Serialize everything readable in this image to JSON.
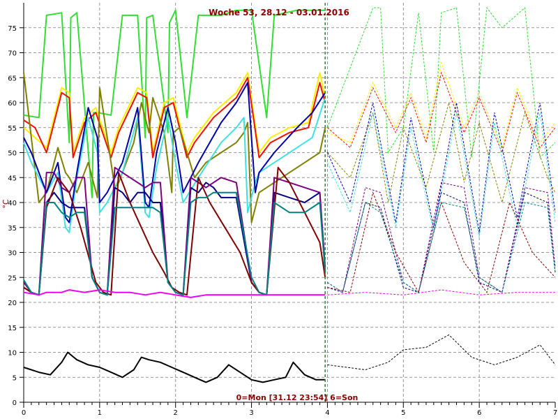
{
  "title": "Woche 53, 28.12 - 03.01.2016",
  "status": "0=Mon [31.12 23:54] 6=Son",
  "chart_data": {
    "type": "line",
    "title": "Woche 53, 28.12 - 03.01.2016",
    "ylabel": "°C",
    "xlim": [
      0,
      7
    ],
    "ylim": [
      0,
      80
    ],
    "x_ticks": [
      "0",
      "1",
      "2",
      "3",
      "4",
      "5",
      "6",
      "7"
    ],
    "y_ticks": [
      "0",
      "5",
      "10",
      "15",
      "20",
      "25",
      "30",
      "35",
      "40",
      "45",
      "50",
      "55",
      "60",
      "65",
      "70",
      "75"
    ],
    "grid": true,
    "divider_x": 3.97,
    "series": [
      {
        "color": "#33dd33",
        "x": [
          0,
          0.2,
          0.3,
          0.5,
          0.6,
          0.62,
          0.7,
          0.9,
          0.92,
          0.98,
          1.15,
          1.3,
          1.5,
          1.6,
          1.62,
          1.7,
          1.9,
          1.92,
          2.0,
          2.15,
          2.3,
          2.6,
          2.8,
          3.0,
          3.2,
          3.3,
          3.6,
          3.97
        ],
        "y": [
          57.5,
          57,
          77.5,
          78,
          52,
          77,
          78,
          41,
          58,
          58,
          57.5,
          77.5,
          77.5,
          53,
          77,
          77.5,
          54,
          76,
          78.5,
          57,
          77.5,
          77.5,
          78.5,
          78.5,
          57,
          77.5,
          78.5,
          78.5
        ],
        "proj_x": [
          4,
          4.5,
          4.6,
          4.7,
          4.8,
          5.0,
          5.2,
          5.4,
          5.5,
          5.7,
          5.9,
          6.1,
          6.3,
          6.6,
          6.8,
          7
        ],
        "proj_y": [
          55,
          75,
          79,
          79,
          50,
          55,
          78,
          50,
          78,
          79,
          49,
          79,
          75,
          79,
          49,
          52
        ]
      },
      {
        "color": "#ffee00",
        "x": [
          0,
          0.15,
          0.3,
          0.5,
          0.6,
          0.65,
          0.8,
          0.95,
          1.15,
          1.25,
          1.5,
          1.62,
          1.7,
          1.85,
          1.97,
          2.15,
          2.25,
          2.5,
          2.8,
          2.95,
          3.1,
          3.25,
          3.5,
          3.75,
          3.9,
          3.97
        ],
        "y": [
          55,
          53,
          51,
          63,
          62,
          50,
          57,
          59,
          50,
          55,
          63,
          62,
          50,
          60,
          61,
          50,
          53,
          58,
          62,
          66,
          50,
          53,
          55,
          56,
          66,
          61
        ],
        "proj_x": [
          4,
          4.3,
          4.6,
          4.9,
          5.1,
          5.3,
          5.5,
          5.8,
          6.0,
          6.3,
          6.5,
          6.8,
          7
        ],
        "proj_y": [
          54,
          52,
          64,
          55,
          62,
          53,
          68,
          55,
          62,
          51,
          63,
          52,
          56
        ]
      },
      {
        "color": "#ee1100",
        "x": [
          0,
          0.15,
          0.3,
          0.5,
          0.6,
          0.65,
          0.8,
          0.95,
          1.15,
          1.25,
          1.5,
          1.62,
          1.7,
          1.85,
          1.97,
          2.15,
          2.25,
          2.5,
          2.8,
          2.95,
          3.1,
          3.25,
          3.5,
          3.75,
          3.9,
          3.97
        ],
        "y": [
          56.5,
          55,
          50,
          62,
          61,
          49,
          56,
          58,
          49,
          54,
          62,
          61,
          49,
          59,
          60,
          49,
          52,
          57,
          61,
          65,
          49,
          52,
          54,
          55,
          64,
          60
        ],
        "proj_x": [
          4,
          4.3,
          4.6,
          4.9,
          5.1,
          5.3,
          5.5,
          5.8,
          6.0,
          6.3,
          6.5,
          6.8,
          7
        ],
        "proj_y": [
          55,
          51,
          63,
          54,
          61,
          52,
          66,
          54,
          61,
          50,
          62,
          51,
          55
        ]
      },
      {
        "color": "#808000",
        "x": [
          0,
          0.2,
          0.3,
          0.45,
          0.55,
          0.6,
          0.7,
          0.85,
          0.97,
          1.0,
          1.2,
          1.25,
          1.45,
          1.55,
          1.65,
          1.7,
          1.85,
          1.95,
          1.97,
          2.05,
          2.25,
          2.4,
          2.6,
          2.8,
          2.9,
          2.95,
          3.0,
          3.1,
          3.3,
          3.5,
          3.7,
          3.9,
          3.97
        ],
        "y": [
          66,
          40,
          42,
          51,
          46,
          45,
          42,
          48,
          41,
          63,
          43,
          44,
          52,
          60,
          54,
          61,
          54,
          42,
          54,
          55,
          45,
          48,
          50,
          52,
          54,
          56,
          36,
          42,
          44,
          46,
          48,
          50,
          55
        ],
        "proj_x": [
          4,
          4.3,
          4.6,
          4.8,
          5.0,
          5.3,
          5.6,
          5.8,
          6.0,
          6.3,
          6.6,
          6.9,
          7
        ],
        "proj_y": [
          50,
          45,
          58,
          40,
          55,
          43,
          60,
          44,
          56,
          40,
          58,
          45,
          42
        ]
      },
      {
        "color": "#40e0e0",
        "x": [
          0,
          0.1,
          0.2,
          0.3,
          0.45,
          0.55,
          0.6,
          0.7,
          0.85,
          0.97,
          1.0,
          1.1,
          1.2,
          1.3,
          1.5,
          1.6,
          1.65,
          1.75,
          1.9,
          2.0,
          2.1,
          2.3,
          2.6,
          2.8,
          2.9,
          2.95,
          3.05,
          3.1,
          3.3,
          3.6,
          3.8,
          3.97
        ],
        "y": [
          52,
          48,
          45,
          42,
          46,
          35,
          34,
          45,
          57,
          50,
          38,
          40,
          43,
          46,
          57,
          38,
          37,
          47,
          57,
          48,
          40,
          45,
          52,
          55,
          57,
          38,
          44,
          46,
          48,
          51,
          53,
          61
        ],
        "proj_x": [
          4,
          4.3,
          4.6,
          4.9,
          5.1,
          5.4,
          5.7,
          6.0,
          6.2,
          6.5,
          6.8,
          7
        ],
        "proj_y": [
          48,
          38,
          58,
          35,
          55,
          34,
          58,
          33,
          56,
          35,
          58,
          36
        ]
      },
      {
        "color": "#0000aa",
        "x": [
          0,
          0.1,
          0.25,
          0.3,
          0.45,
          0.55,
          0.6,
          0.7,
          0.85,
          0.97,
          1.0,
          1.1,
          1.2,
          1.3,
          1.5,
          1.6,
          1.65,
          1.75,
          1.9,
          2.0,
          2.1,
          2.3,
          2.6,
          2.8,
          2.95,
          3.05,
          3.1,
          3.3,
          3.6,
          3.8,
          3.97
        ],
        "y": [
          53,
          50,
          44,
          42,
          48,
          37,
          36,
          46,
          59,
          53,
          40,
          42,
          45,
          48,
          59,
          40,
          39,
          50,
          59,
          52,
          42,
          48,
          56,
          60,
          64,
          42,
          46,
          50,
          55,
          58,
          62
        ],
        "proj_x": [
          4,
          4.3,
          4.6,
          4.9,
          5.1,
          5.4,
          5.7,
          6.0,
          6.2,
          6.5,
          6.8,
          7
        ],
        "proj_y": [
          50,
          40,
          60,
          36,
          57,
          35,
          60,
          34,
          58,
          37,
          60,
          38
        ]
      },
      {
        "color": "#000080",
        "x": [
          0,
          0.1,
          0.2,
          0.3,
          0.4,
          0.5,
          0.6,
          0.7,
          0.8,
          0.9,
          1.0,
          1.1,
          1.2,
          1.3,
          1.4,
          1.5,
          1.6,
          1.7,
          1.8,
          1.9,
          2.0,
          2.1,
          2.2,
          2.3,
          2.4,
          2.5,
          2.6,
          2.8,
          3.0,
          3.1,
          3.2,
          3.3,
          3.5,
          3.7,
          3.9,
          3.97
        ],
        "y": [
          23,
          22,
          21.5,
          40,
          42,
          40,
          39,
          39,
          39,
          25,
          22,
          21.5,
          43,
          42,
          40,
          42,
          42,
          40,
          40,
          24,
          22,
          21.5,
          43,
          42,
          44,
          43,
          41,
          41,
          24,
          22,
          21.5,
          42,
          41,
          40,
          42,
          26
        ],
        "proj_x": [
          4,
          4.2,
          4.5,
          4.7,
          5.0,
          5.2,
          5.5,
          5.8,
          6.0,
          6.3,
          6.6,
          6.9,
          7
        ],
        "proj_y": [
          23,
          22,
          40,
          39,
          23,
          22,
          42,
          40,
          24,
          22,
          42,
          40,
          26
        ]
      },
      {
        "color": "#7a0080",
        "x": [
          0,
          0.1,
          0.2,
          0.3,
          0.4,
          0.5,
          0.6,
          0.7,
          0.8,
          0.9,
          1.0,
          1.1,
          1.2,
          1.3,
          1.4,
          1.5,
          1.6,
          1.7,
          1.8,
          1.9,
          2.0,
          2.1,
          2.2,
          2.3,
          2.4,
          2.5,
          2.6,
          2.8,
          3.0,
          3.1,
          3.2,
          3.3,
          3.5,
          3.7,
          3.9,
          3.97
        ],
        "y": [
          24,
          22,
          21.5,
          46,
          46,
          43,
          42,
          45,
          45,
          25,
          22,
          21.5,
          47,
          46,
          45,
          44,
          43,
          44,
          44,
          24,
          22,
          21.5,
          45,
          44,
          43,
          44,
          45,
          44,
          24,
          22,
          21.5,
          45,
          44,
          43,
          42,
          27
        ],
        "proj_x": [
          4,
          4.2,
          4.5,
          4.7,
          5.0,
          5.2,
          5.5,
          5.8,
          6.0,
          6.3,
          6.6,
          6.9,
          7
        ],
        "proj_y": [
          24,
          22,
          43,
          42,
          24,
          22,
          44,
          43,
          25,
          22,
          43,
          42,
          27
        ]
      },
      {
        "color": "#800000",
        "x": [
          0,
          0.1,
          0.2,
          0.3,
          0.45,
          0.6,
          0.75,
          0.95,
          1.05,
          1.15,
          1.25,
          1.4,
          1.55,
          1.7,
          1.85,
          1.95,
          2.05,
          2.15,
          2.3,
          2.45,
          2.65,
          2.85,
          3.0,
          3.1,
          3.2,
          3.35,
          3.5,
          3.7,
          3.9,
          3.97
        ],
        "y": [
          23,
          22,
          21.5,
          39,
          45,
          42,
          35,
          24,
          22,
          21.5,
          46,
          40,
          35,
          30,
          26,
          23,
          22,
          21.5,
          45,
          40,
          35,
          30,
          24,
          22,
          21.5,
          47,
          44,
          38,
          32,
          25
        ],
        "proj_x": [
          4,
          4.3,
          4.6,
          4.9,
          5.2,
          5.5,
          5.8,
          6.1,
          6.4,
          6.7,
          7
        ],
        "proj_y": [
          23,
          22,
          42,
          30,
          22,
          40,
          28,
          22,
          40,
          30,
          25
        ]
      },
      {
        "color": "#008080",
        "x": [
          0,
          0.1,
          0.2,
          0.3,
          0.4,
          0.5,
          0.6,
          0.7,
          0.8,
          0.9,
          1.0,
          1.1,
          1.2,
          1.3,
          1.4,
          1.5,
          1.6,
          1.7,
          1.8,
          1.9,
          2.0,
          2.1,
          2.2,
          2.3,
          2.4,
          2.5,
          2.6,
          2.8,
          3.0,
          3.1,
          3.2,
          3.3,
          3.5,
          3.7,
          3.9,
          3.97
        ],
        "y": [
          24.5,
          22,
          21.5,
          40,
          40,
          38,
          37,
          38,
          38,
          25,
          22,
          21.5,
          39,
          39,
          39,
          39,
          39,
          39,
          38,
          24,
          22,
          21.5,
          40,
          41,
          41,
          42,
          42,
          42,
          25,
          22,
          21.5,
          40,
          38,
          38,
          40,
          26
        ],
        "proj_x": [
          4,
          4.2,
          4.5,
          4.7,
          5.0,
          5.2,
          5.5,
          5.8,
          6.0,
          6.3,
          6.6,
          6.9,
          7
        ],
        "proj_y": [
          24,
          22,
          40,
          38,
          24,
          22,
          40,
          39,
          25,
          22,
          40,
          39,
          26
        ]
      },
      {
        "color": "#ee00ee",
        "x": [
          0,
          0.2,
          0.3,
          0.5,
          0.6,
          0.8,
          1.0,
          1.2,
          1.4,
          1.6,
          1.8,
          2.0,
          2.2,
          2.4,
          2.6,
          2.8,
          3.0,
          3.2,
          3.4,
          3.6,
          3.8,
          3.97
        ],
        "y": [
          22,
          21.5,
          22,
          22,
          22.5,
          22,
          22.5,
          22,
          22,
          21.5,
          22,
          21.5,
          21,
          21.5,
          21.5,
          21.5,
          21.5,
          21.5,
          21.5,
          21.5,
          21.5,
          21.5
        ],
        "proj_x": [
          4,
          4.5,
          5,
          5.5,
          6,
          6.5,
          7
        ],
        "proj_y": [
          21.5,
          22,
          21.5,
          22.5,
          21.5,
          22,
          22
        ]
      },
      {
        "color": "#000000",
        "x": [
          0,
          0.2,
          0.35,
          0.5,
          0.58,
          0.7,
          0.85,
          1.0,
          1.15,
          1.3,
          1.45,
          1.55,
          1.65,
          1.8,
          1.95,
          2.1,
          2.25,
          2.4,
          2.55,
          2.7,
          2.85,
          3.0,
          3.15,
          3.3,
          3.45,
          3.55,
          3.7,
          3.85,
          3.97
        ],
        "y": [
          7,
          6,
          5.5,
          8,
          10,
          8.5,
          7.5,
          7,
          6,
          5,
          6.5,
          9,
          8.5,
          8,
          7,
          6,
          5,
          4,
          5,
          7.5,
          6,
          4.5,
          4,
          4.5,
          5,
          8,
          5.5,
          4.5,
          4.5
        ],
        "proj_x": [
          4,
          4.5,
          4.8,
          5.0,
          5.3,
          5.6,
          5.9,
          6.2,
          6.5,
          6.8,
          7
        ],
        "proj_y": [
          7.5,
          6.5,
          8,
          10.5,
          11,
          13.5,
          9,
          7.5,
          9,
          11.5,
          7.5
        ]
      }
    ]
  }
}
